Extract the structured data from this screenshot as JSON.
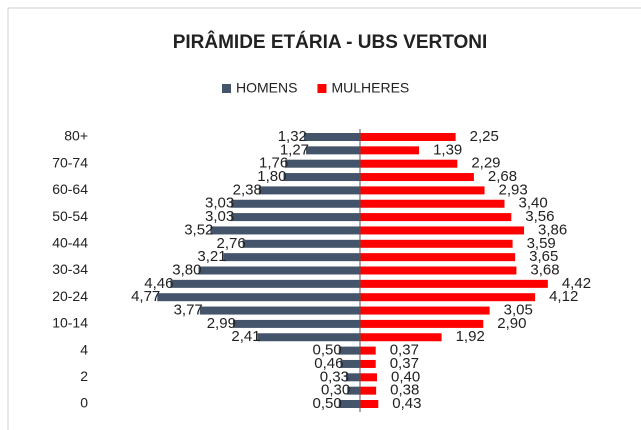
{
  "chart_data": {
    "type": "pyramid",
    "title": "PIRÂMIDE ETÁRIA - UBS VERTONI",
    "categories": [
      "80+",
      null,
      "70-74",
      null,
      "60-64",
      null,
      "50-54",
      null,
      "40-44",
      null,
      "30-34",
      null,
      "20-24",
      null,
      "10-14",
      null,
      "4",
      null,
      "2",
      null,
      "0"
    ],
    "series": [
      {
        "name": "HOMENS",
        "color": "#44546a",
        "side": "left",
        "values": [
          1.32,
          1.27,
          1.76,
          1.8,
          2.38,
          3.03,
          3.03,
          3.52,
          2.76,
          3.21,
          3.8,
          4.46,
          4.77,
          3.77,
          2.99,
          2.41,
          0.5,
          0.46,
          0.33,
          0.3,
          0.5
        ],
        "value_labels": [
          "1,32",
          "1,27",
          "1,76",
          "1,80",
          "2,38",
          "3,03",
          "3,03",
          "3,52",
          "2,76",
          "3,21",
          "3,80",
          "4,46",
          "4,77",
          "3,77",
          "2,99",
          "2,41",
          "0,50",
          "0,46",
          "0,33",
          "0,30",
          "0,50"
        ]
      },
      {
        "name": "MULHERES",
        "color": "#ff0000",
        "side": "right",
        "values": [
          2.25,
          1.39,
          2.29,
          2.68,
          2.93,
          3.4,
          3.56,
          3.86,
          3.59,
          3.65,
          3.68,
          4.42,
          4.12,
          3.05,
          2.9,
          1.92,
          0.37,
          0.37,
          0.4,
          0.38,
          0.43
        ],
        "value_labels": [
          "2,25",
          "1,39",
          "2,29",
          "2,68",
          "2,93",
          "3,40",
          "3,56",
          "3,86",
          "3,59",
          "3,65",
          "3,68",
          "4,42",
          "4,12",
          "3,05",
          "2,90",
          "1,92",
          "0,37",
          "0,37",
          "0,40",
          "0,38",
          "0,43"
        ]
      }
    ],
    "legend": "top"
  }
}
